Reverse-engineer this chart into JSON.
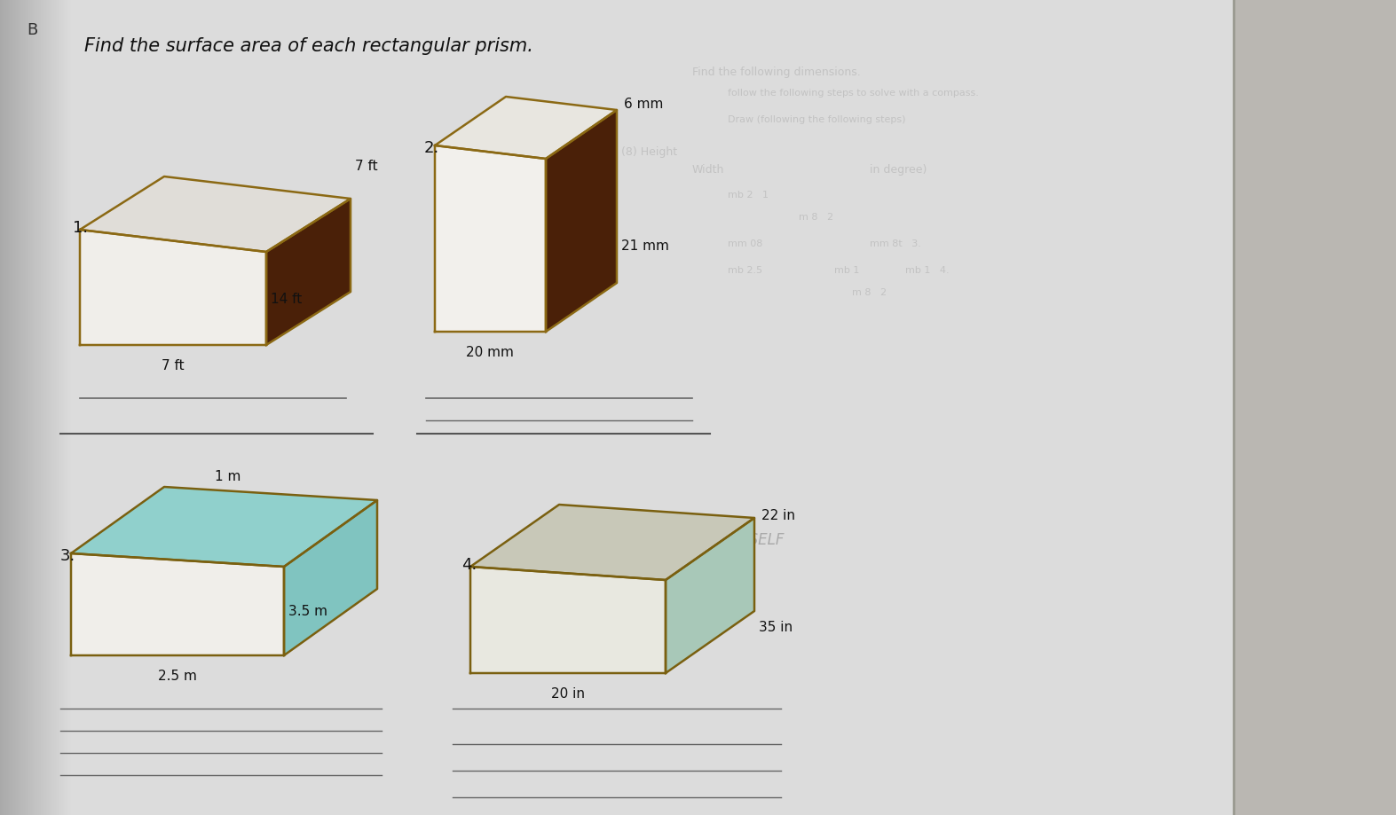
{
  "title": "Find the surface area of each rectangular prism.",
  "bg_left": "#c8c8c8",
  "bg_page": "#dcdcdc",
  "bg_right": "#b8b5b0",
  "prism1": {
    "label": "1.",
    "dim_top": "7 ft",
    "dim_right": "14 ft",
    "dim_bottom": "7 ft",
    "top_color": "#e0ddd8",
    "side_color": "#4a2008",
    "front_color": "#f0eeea",
    "edge_color": "#8b6914"
  },
  "prism2": {
    "label": "2.",
    "dim_top": "6 mm",
    "dim_right": "21 mm",
    "dim_bottom": "20 mm",
    "top_color": "#e8e6e0",
    "side_color": "#4a2008",
    "front_color": "#f2f0ec",
    "edge_color": "#8b6914"
  },
  "prism3": {
    "label": "3.",
    "dim_top": "1 m",
    "dim_right": "3.5 m",
    "dim_bottom": "2.5 m",
    "top_color": "#90d0cc",
    "side_color": "#80c4c0",
    "front_color": "#f0eeea",
    "edge_color": "#7a6010"
  },
  "prism4": {
    "label": "4.",
    "dim_top": "22 in",
    "dim_right": "35 in",
    "dim_bottom": "20 in",
    "top_color": "#c8c8b8",
    "side_color": "#a8c8b8",
    "front_color": "#e8e8e0",
    "edge_color": "#7a6010"
  },
  "line_color": "#444444",
  "text_color": "#111111",
  "answer_line_color": "#666666",
  "ghost_text_color": "#aaaaaa"
}
